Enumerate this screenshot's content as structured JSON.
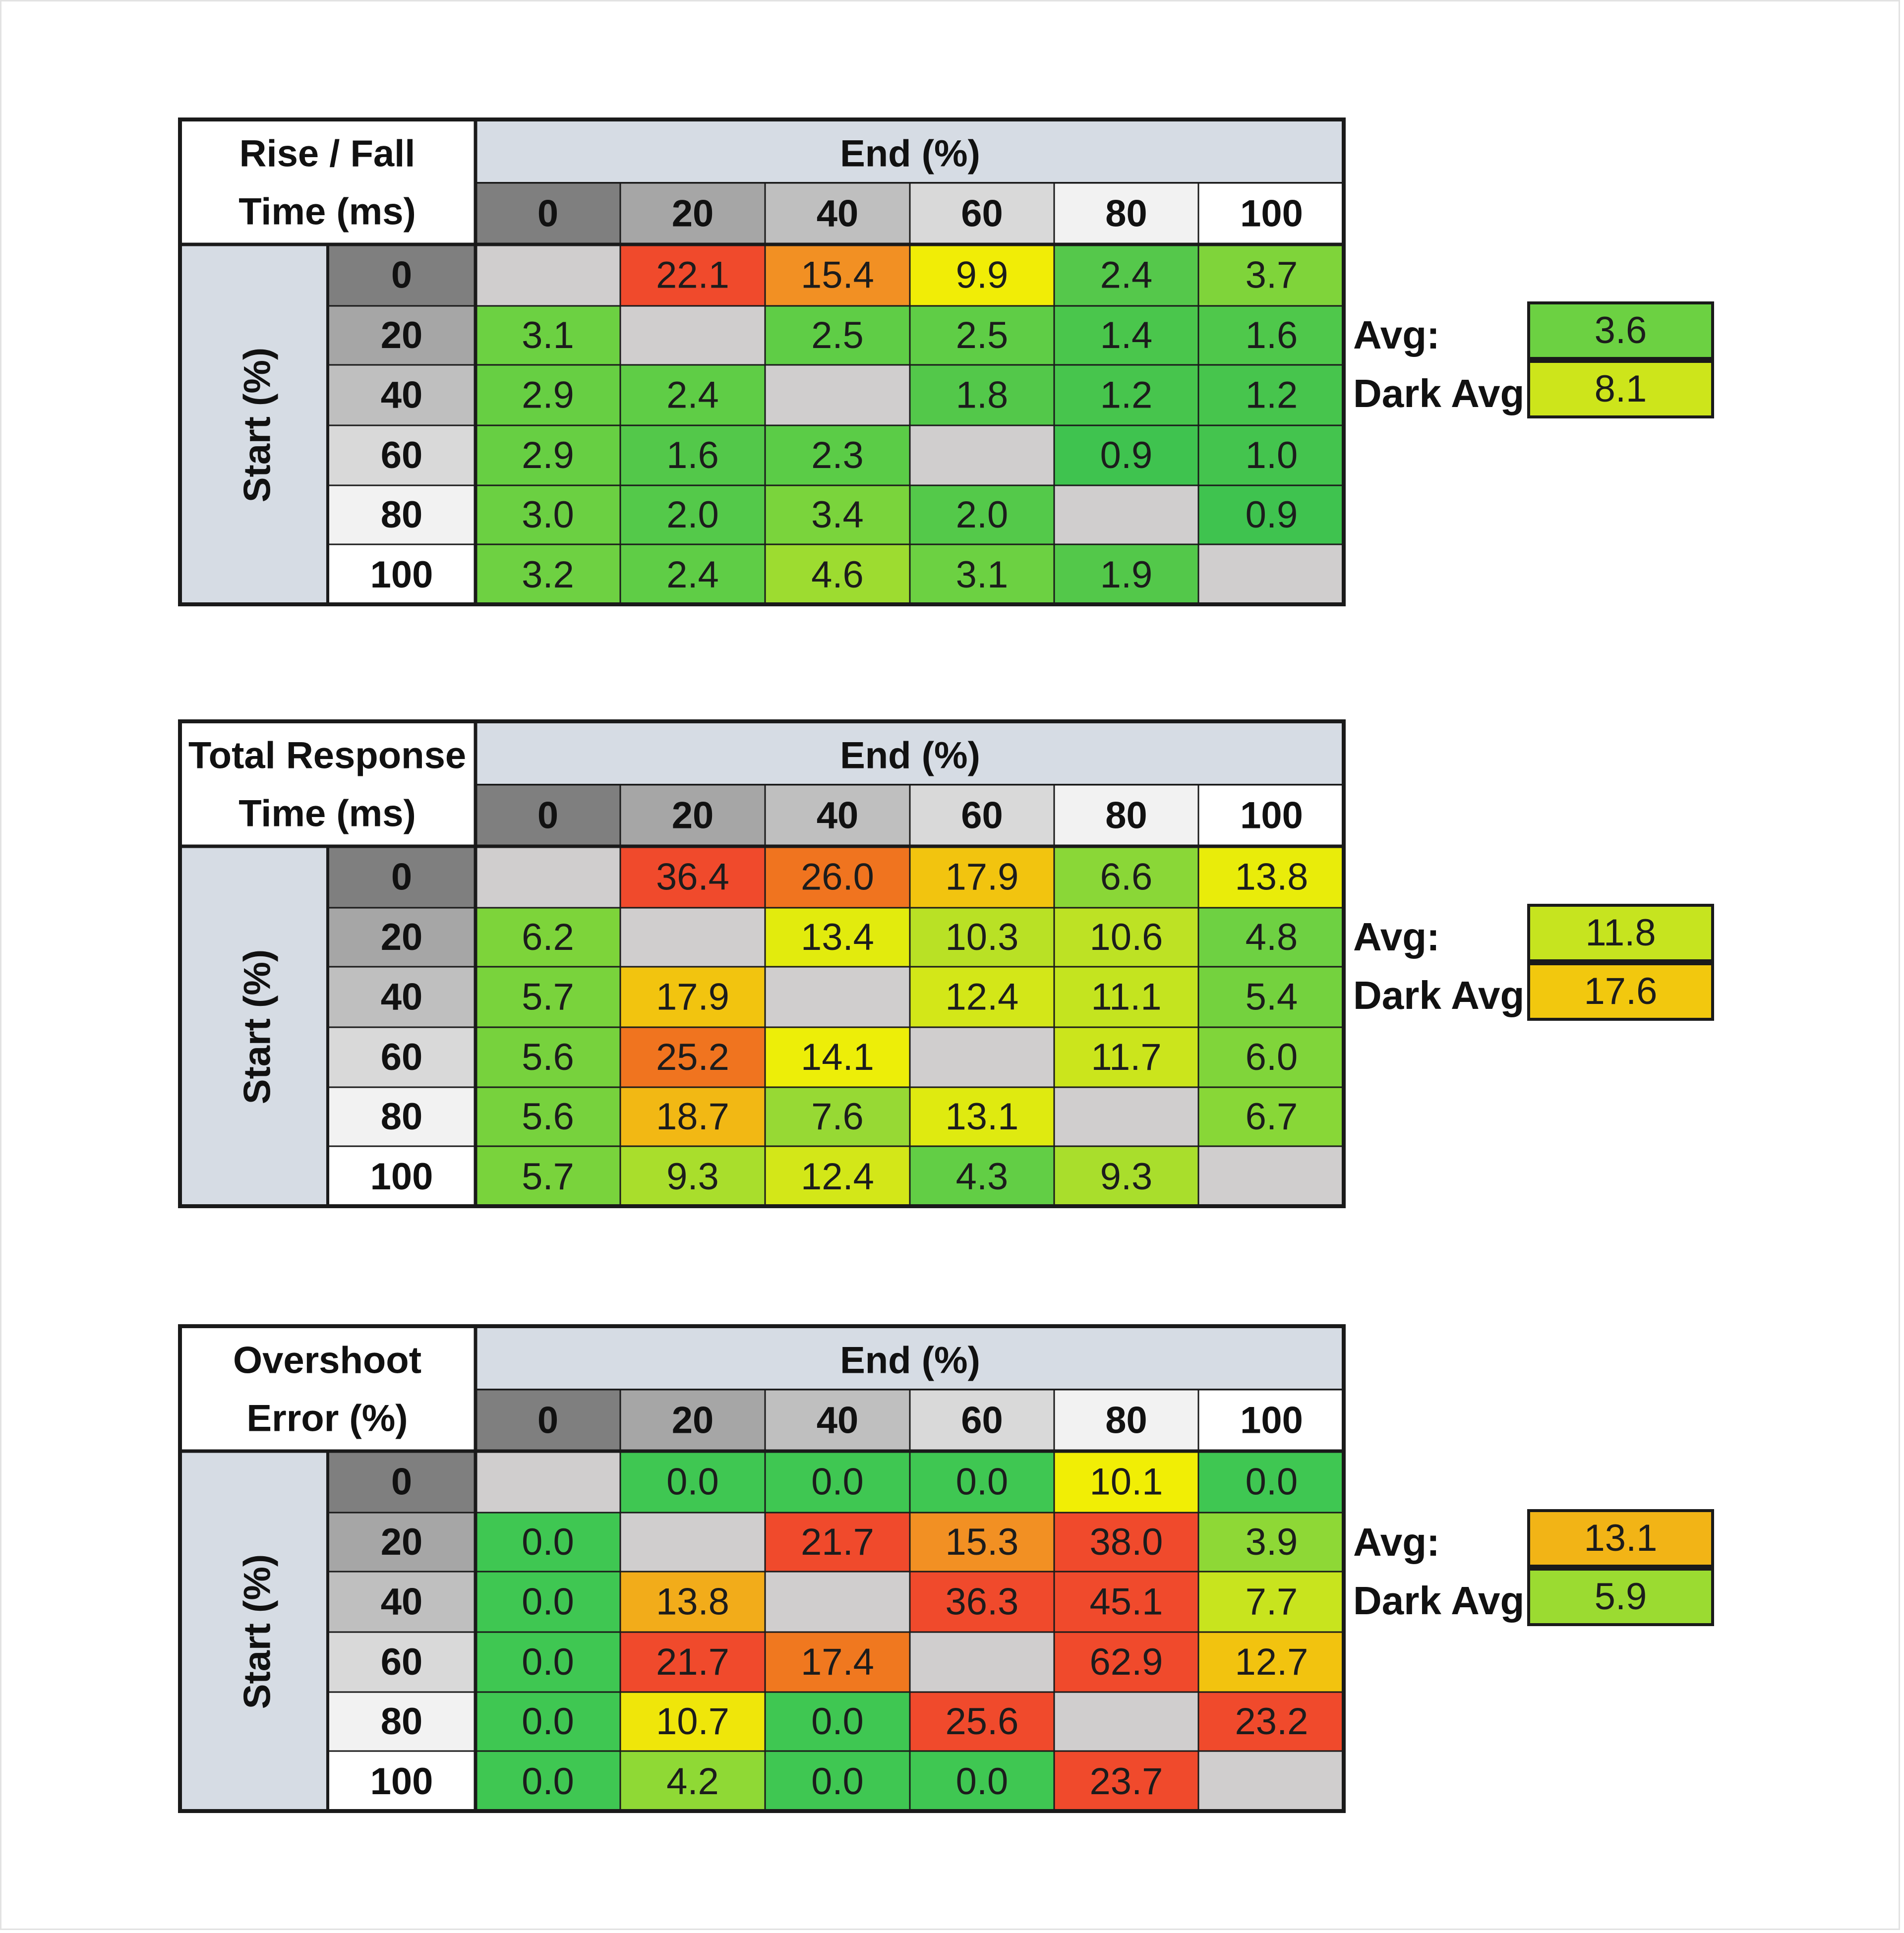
{
  "chart_data": [
    {
      "type": "heatmap",
      "title_lines": [
        "Rise / Fall",
        "Time (ms)"
      ],
      "xlabel": "End (%)",
      "ylabel": "Start (%)",
      "x": [
        "0",
        "20",
        "40",
        "60",
        "80",
        "100"
      ],
      "y": [
        "0",
        "20",
        "40",
        "60",
        "80",
        "100"
      ],
      "values": [
        [
          null,
          22.1,
          15.4,
          9.9,
          2.4,
          3.7
        ],
        [
          3.1,
          null,
          2.5,
          2.5,
          1.4,
          1.6
        ],
        [
          2.9,
          2.4,
          null,
          1.8,
          1.2,
          1.2
        ],
        [
          2.9,
          1.6,
          2.3,
          null,
          0.9,
          1.0
        ],
        [
          3.0,
          2.0,
          3.4,
          2.0,
          null,
          0.9
        ],
        [
          3.2,
          2.4,
          4.6,
          3.1,
          1.9,
          null
        ]
      ],
      "labels": [
        [
          "",
          "22.1",
          "15.4",
          "9.9",
          "2.4",
          "3.7"
        ],
        [
          "3.1",
          "",
          "2.5",
          "2.5",
          "1.4",
          "1.6"
        ],
        [
          "2.9",
          "2.4",
          "",
          "1.8",
          "1.2",
          "1.2"
        ],
        [
          "2.9",
          "1.6",
          "2.3",
          "",
          "0.9",
          "1.0"
        ],
        [
          "3.0",
          "2.0",
          "3.4",
          "2.0",
          "",
          "0.9"
        ],
        [
          "3.2",
          "2.4",
          "4.6",
          "3.1",
          "1.9",
          ""
        ]
      ],
      "colors": [
        [
          "#d0cece",
          "#f04a2c",
          "#f29023",
          "#f1ed06",
          "#55c84b",
          "#7fd43a"
        ],
        [
          "#6cd142",
          "#d0cece",
          "#5fcd46",
          "#5fcd46",
          "#4ac64c",
          "#4fc84b"
        ],
        [
          "#67cf43",
          "#5fcd46",
          "#d0cece",
          "#53c84a",
          "#47c54d",
          "#47c54d"
        ],
        [
          "#67cf43",
          "#53c84a",
          "#5bcc47",
          "#d0cece",
          "#3fc34f",
          "#44c44e"
        ],
        [
          "#6bd042",
          "#54c94a",
          "#7ad43c",
          "#54c94a",
          "#d0cece",
          "#3fc34f"
        ],
        [
          "#6ed142",
          "#5fcd46",
          "#9ddc30",
          "#6cd142",
          "#53c84a",
          "#d0cece"
        ]
      ],
      "summary": [
        {
          "label": "Avg:",
          "value": "3.6",
          "color": "#6cd142"
        },
        {
          "label": "Dark Avg:",
          "value": "8.1",
          "color": "#cde51b"
        }
      ]
    },
    {
      "type": "heatmap",
      "title_lines": [
        "Total Response",
        "Time (ms)"
      ],
      "xlabel": "End (%)",
      "ylabel": "Start (%)",
      "x": [
        "0",
        "20",
        "40",
        "60",
        "80",
        "100"
      ],
      "y": [
        "0",
        "20",
        "40",
        "60",
        "80",
        "100"
      ],
      "values": [
        [
          null,
          36.4,
          26.0,
          17.9,
          6.6,
          13.8
        ],
        [
          6.2,
          null,
          13.4,
          10.3,
          10.6,
          4.8
        ],
        [
          5.7,
          17.9,
          null,
          12.4,
          11.1,
          5.4
        ],
        [
          5.6,
          25.2,
          14.1,
          null,
          11.7,
          6.0
        ],
        [
          5.6,
          18.7,
          7.6,
          13.1,
          null,
          6.7
        ],
        [
          5.7,
          9.3,
          12.4,
          4.3,
          9.3,
          null
        ]
      ],
      "labels": [
        [
          "",
          "36.4",
          "26.0",
          "17.9",
          "6.6",
          "13.8"
        ],
        [
          "6.2",
          "",
          "13.4",
          "10.3",
          "10.6",
          "4.8"
        ],
        [
          "5.7",
          "17.9",
          "",
          "12.4",
          "11.1",
          "5.4"
        ],
        [
          "5.6",
          "25.2",
          "14.1",
          "",
          "11.7",
          "6.0"
        ],
        [
          "5.6",
          "18.7",
          "7.6",
          "13.1",
          "",
          "6.7"
        ],
        [
          "5.7",
          "9.3",
          "12.4",
          "4.3",
          "9.3",
          ""
        ]
      ],
      "colors": [
        [
          "#d0cece",
          "#f04a2c",
          "#f0741f",
          "#f2c40f",
          "#8ad737",
          "#e9ec0a"
        ],
        [
          "#7dd43a",
          "#d0cece",
          "#e2eb0d",
          "#b9e125",
          "#bde224",
          "#6ed142"
        ],
        [
          "#79d33c",
          "#f2c40f",
          "#d0cece",
          "#d3e718",
          "#c4e41f",
          "#74d23e"
        ],
        [
          "#77d23d",
          "#f0741f",
          "#edee08",
          "#d0cece",
          "#cbe51c",
          "#80d53a"
        ],
        [
          "#77d23d",
          "#f2b814",
          "#97d934",
          "#dfea10",
          "#d0cece",
          "#88d737"
        ],
        [
          "#79d33c",
          "#a9de2c",
          "#d3e718",
          "#62ce45",
          "#a9de2c",
          "#d0cece"
        ]
      ],
      "summary": [
        {
          "label": "Avg:",
          "value": "11.8",
          "color": "#c6e41f"
        },
        {
          "label": "Dark Avg:",
          "value": "17.6",
          "color": "#f2c80e"
        }
      ]
    },
    {
      "type": "heatmap",
      "title_lines": [
        "Overshoot",
        "Error (%)"
      ],
      "xlabel": "End (%)",
      "ylabel": "Start (%)",
      "x": [
        "0",
        "20",
        "40",
        "60",
        "80",
        "100"
      ],
      "y": [
        "0",
        "20",
        "40",
        "60",
        "80",
        "100"
      ],
      "values": [
        [
          null,
          0.0,
          0.0,
          0.0,
          10.1,
          0.0
        ],
        [
          0.0,
          null,
          21.7,
          15.3,
          38.0,
          3.9
        ],
        [
          0.0,
          13.8,
          null,
          36.3,
          45.1,
          7.7
        ],
        [
          0.0,
          21.7,
          17.4,
          null,
          62.9,
          12.7
        ],
        [
          0.0,
          10.7,
          0.0,
          25.6,
          null,
          23.2
        ],
        [
          0.0,
          4.2,
          0.0,
          0.0,
          23.7,
          null
        ]
      ],
      "labels": [
        [
          "",
          "0.0",
          "0.0",
          "0.0",
          "10.1",
          "0.0"
        ],
        [
          "0.0",
          "",
          "21.7",
          "15.3",
          "38.0",
          "3.9"
        ],
        [
          "0.0",
          "13.8",
          "",
          "36.3",
          "45.1",
          "7.7"
        ],
        [
          "0.0",
          "21.7",
          "17.4",
          "",
          "62.9",
          "12.7"
        ],
        [
          "0.0",
          "10.7",
          "0.0",
          "25.6",
          "",
          "23.2"
        ],
        [
          "0.0",
          "4.2",
          "0.0",
          "0.0",
          "23.7",
          ""
        ]
      ],
      "colors": [
        [
          "#d0cece",
          "#3fc752",
          "#3fc752",
          "#3fc752",
          "#f1ee05",
          "#3fc752"
        ],
        [
          "#3fc752",
          "#d0cece",
          "#f04a2c",
          "#f29023",
          "#f04a2c",
          "#8ed836"
        ],
        [
          "#3fc752",
          "#f2ac1a",
          "#d0cece",
          "#f04a2c",
          "#f04a2c",
          "#c8e41e"
        ],
        [
          "#3fc752",
          "#f04a2c",
          "#f0781f",
          "#d0cece",
          "#f04a2c",
          "#f2c30f"
        ],
        [
          "#3fc752",
          "#efe60a",
          "#3fc752",
          "#f04a2c",
          "#d0cece",
          "#f04a2c"
        ],
        [
          "#3fc752",
          "#8fd935",
          "#3fc752",
          "#3fc752",
          "#f04a2c",
          "#d0cece"
        ]
      ],
      "summary": [
        {
          "label": "Avg:",
          "value": "13.1",
          "color": "#f2b416"
        },
        {
          "label": "Dark Avg:",
          "value": "5.9",
          "color": "#9bdb31"
        }
      ]
    }
  ]
}
